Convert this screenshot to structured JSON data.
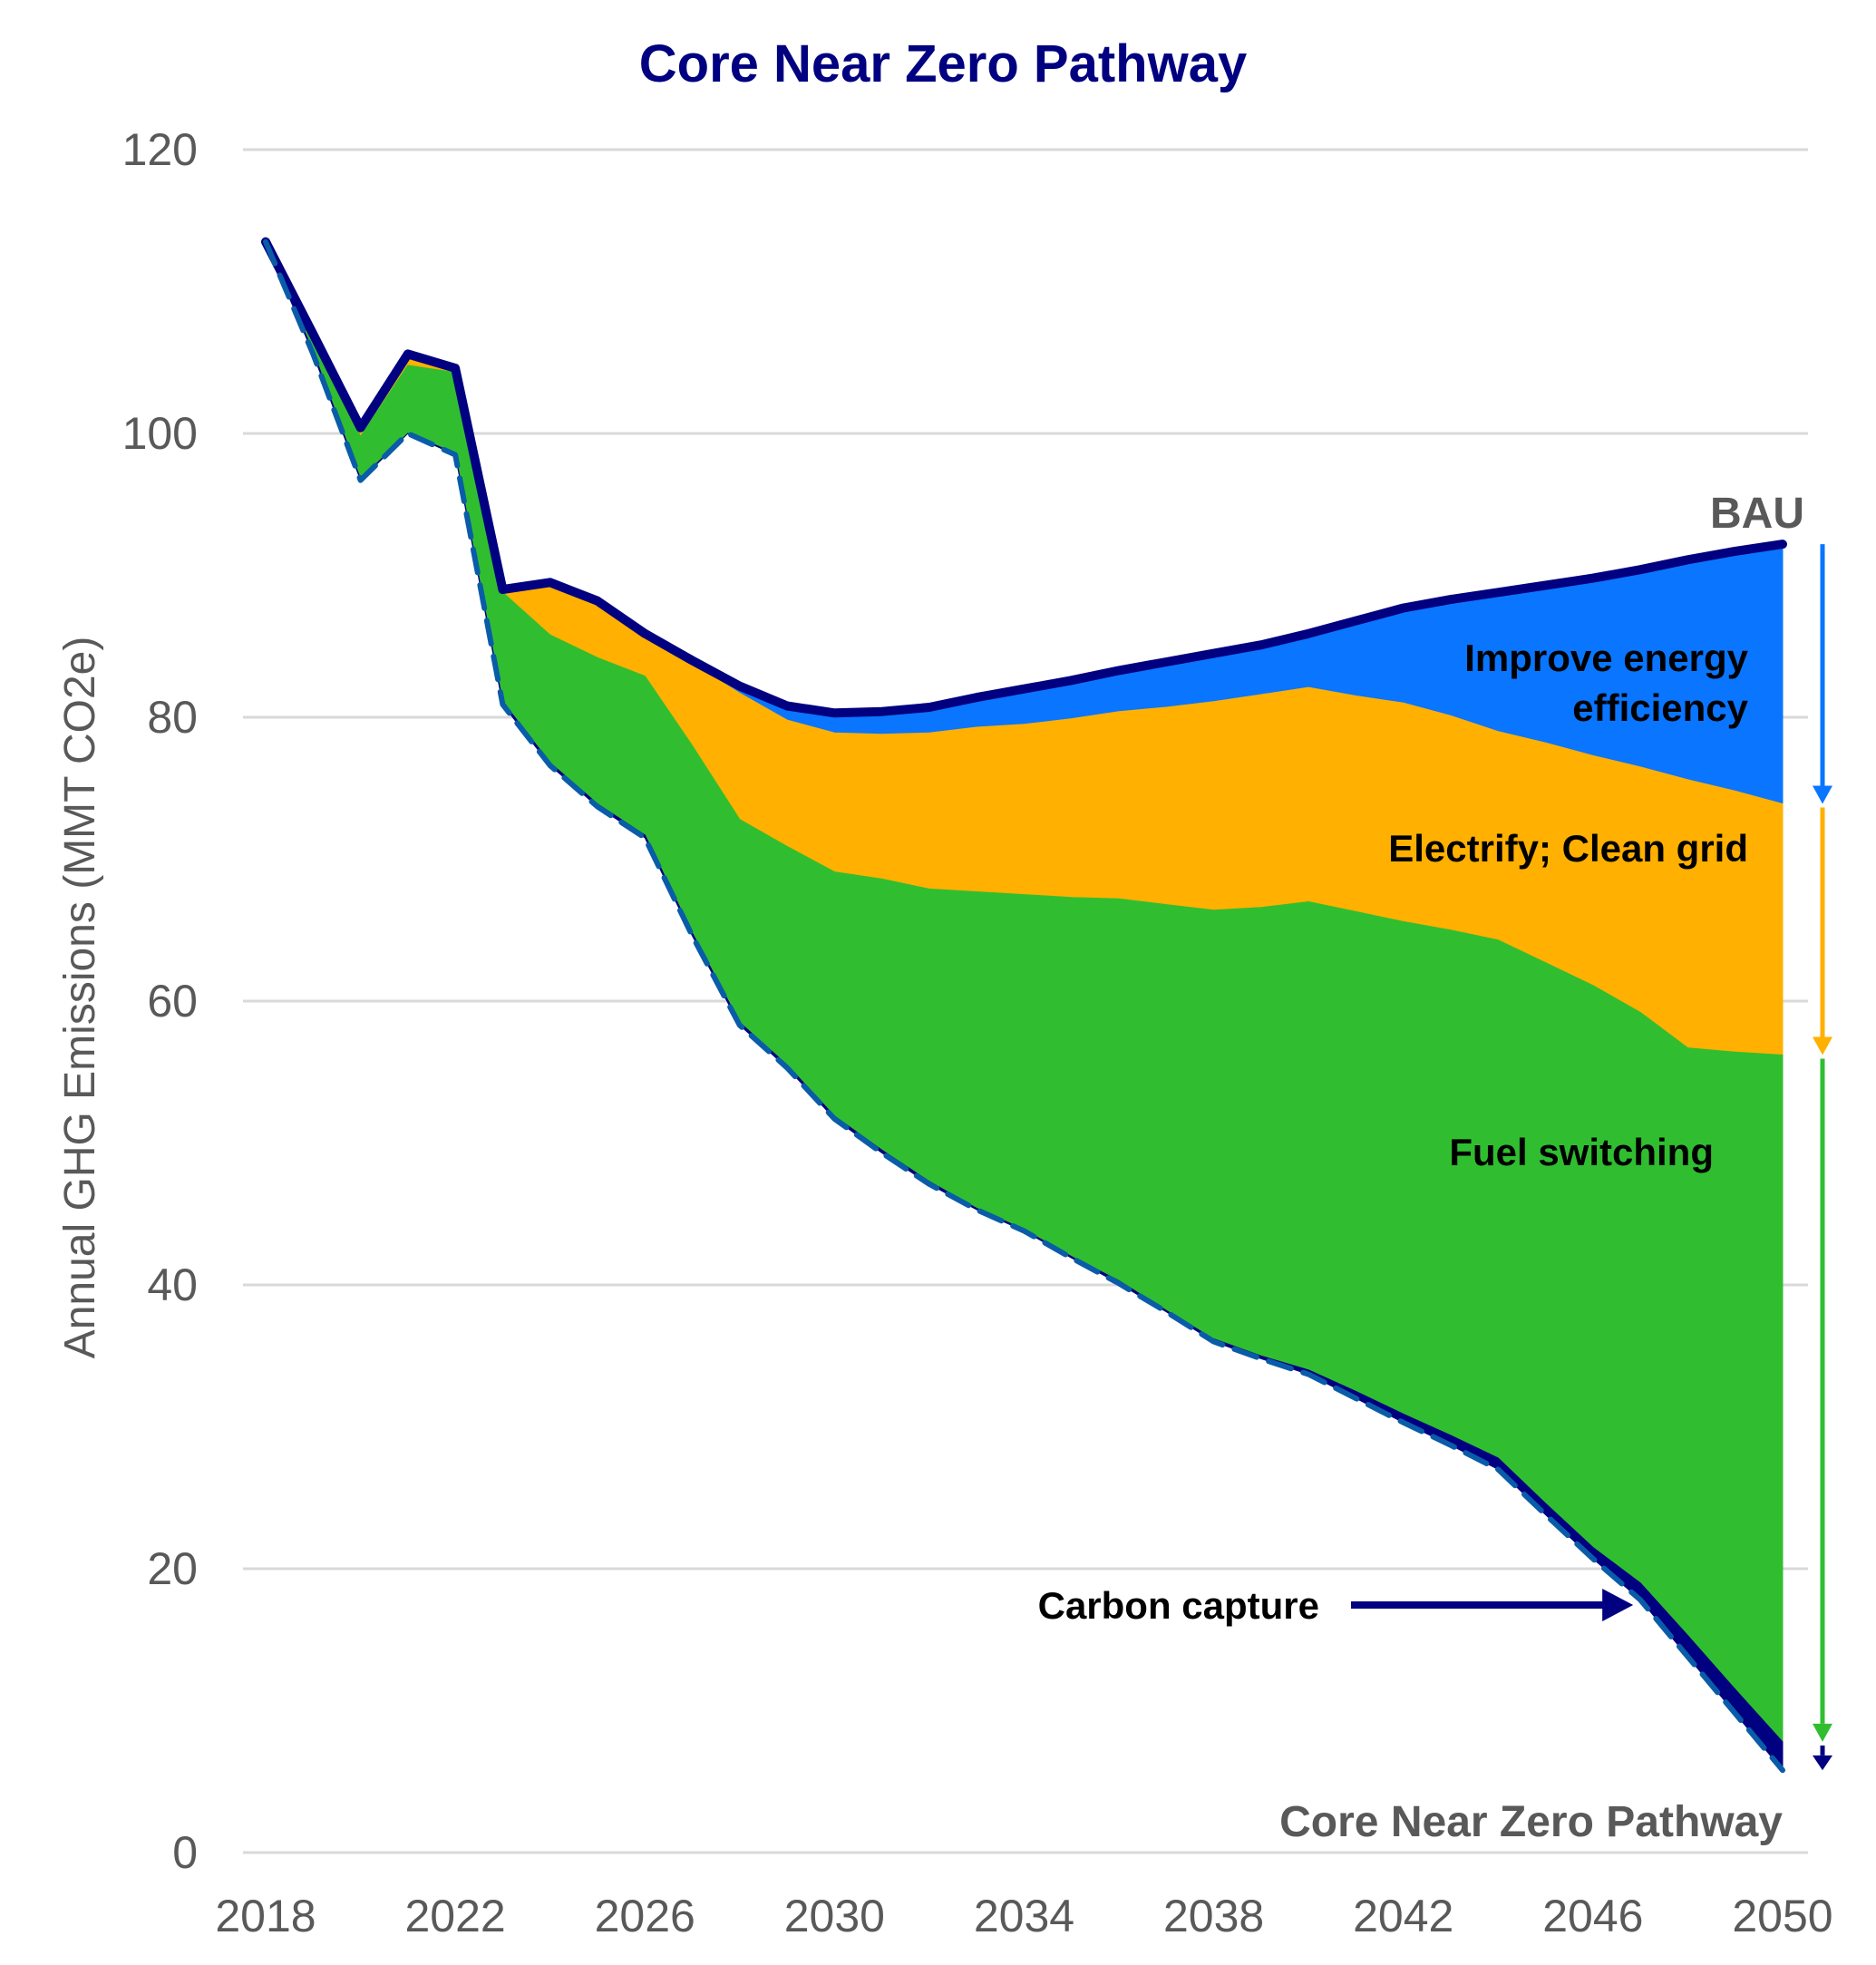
{
  "chart_data": {
    "type": "area",
    "title": "Core Near Zero Pathway",
    "xlabel": "",
    "ylabel": "Annual GHG Emissions (MMT CO2e)",
    "xlim": [
      2018,
      2050
    ],
    "ylim": [
      0,
      120
    ],
    "grid": true,
    "x_ticks": [
      "2018",
      "2022",
      "2026",
      "2030",
      "2034",
      "2038",
      "2042",
      "2046",
      "2050"
    ],
    "y_ticks": [
      "0",
      "20",
      "40",
      "60",
      "80",
      "100",
      "120"
    ],
    "x": [
      2018,
      2019,
      2020,
      2021,
      2022,
      2023,
      2024,
      2025,
      2026,
      2027,
      2028,
      2029,
      2030,
      2031,
      2032,
      2033,
      2034,
      2035,
      2036,
      2037,
      2038,
      2039,
      2040,
      2041,
      2042,
      2043,
      2044,
      2045,
      2046,
      2047,
      2048,
      2049,
      2050
    ],
    "boundaries": {
      "bau": [
        113.5,
        107.0,
        100.4,
        105.6,
        104.6,
        89.0,
        89.5,
        88.2,
        85.9,
        84.0,
        82.2,
        80.8,
        80.3,
        80.4,
        80.7,
        81.4,
        82.0,
        82.6,
        83.3,
        83.9,
        84.5,
        85.1,
        85.9,
        86.8,
        87.7,
        88.3,
        88.8,
        89.3,
        89.8,
        90.4,
        91.1,
        91.7,
        92.2
      ],
      "after_efficiency": [
        113.5,
        107.0,
        100.3,
        105.3,
        104.5,
        88.9,
        89.3,
        88.0,
        85.8,
        83.8,
        81.7,
        79.8,
        78.9,
        78.8,
        78.9,
        79.3,
        79.5,
        79.9,
        80.4,
        80.7,
        81.1,
        81.6,
        82.1,
        81.5,
        81.0,
        80.1,
        79.0,
        78.2,
        77.3,
        76.5,
        75.6,
        74.8,
        73.9
      ],
      "after_electrification": [
        113.5,
        106.5,
        99.8,
        104.8,
        104.3,
        88.8,
        85.8,
        84.2,
        82.9,
        78.0,
        72.8,
        70.9,
        69.1,
        68.6,
        67.9,
        67.7,
        67.5,
        67.3,
        67.2,
        66.8,
        66.4,
        66.6,
        67.0,
        66.3,
        65.6,
        65.0,
        64.3,
        62.7,
        61.1,
        59.2,
        56.7,
        56.4,
        56.2
      ],
      "after_fuel_switching": [
        113.5,
        105.8,
        96.8,
        100.0,
        98.6,
        81.1,
        76.8,
        73.9,
        71.7,
        64.8,
        58.5,
        55.5,
        51.9,
        49.5,
        47.3,
        45.4,
        43.9,
        42.0,
        40.3,
        38.2,
        36.2,
        35.0,
        34.0,
        32.5,
        30.9,
        29.4,
        27.8,
        24.6,
        21.5,
        19.0,
        15.3,
        11.5,
        7.8
      ],
      "core_near_zero": [
        113.5,
        105.6,
        96.7,
        100.0,
        98.5,
        80.9,
        76.6,
        73.7,
        71.5,
        64.6,
        58.3,
        55.3,
        51.7,
        49.3,
        47.1,
        45.3,
        43.8,
        41.9,
        40.1,
        38.1,
        36.0,
        34.8,
        33.7,
        32.0,
        30.3,
        28.7,
        27.0,
        23.8,
        20.7,
        17.8,
        13.8,
        9.8,
        5.8
      ]
    },
    "series": [
      {
        "name": "Improve energy efficiency",
        "color": "#0A75FF",
        "from": "after_efficiency",
        "to": "bau"
      },
      {
        "name": "Electrify; Clean grid",
        "color": "#FFB000",
        "from": "after_electrification",
        "to": "after_efficiency"
      },
      {
        "name": "Fuel switching",
        "color": "#30BE30",
        "from": "after_fuel_switching",
        "to": "after_electrification"
      },
      {
        "name": "Carbon capture",
        "color": "#000080",
        "from": "core_near_zero",
        "to": "after_fuel_switching"
      }
    ],
    "lines": [
      {
        "name": "BAU",
        "color": "#000080",
        "style": "solid",
        "values_ref": "bau"
      },
      {
        "name": "Core Near Zero Pathway",
        "color": "#0A5CA8",
        "style": "dashed",
        "values_ref": "core_near_zero"
      }
    ],
    "annotations": {
      "bau_label": "BAU",
      "efficiency_label_line1": "Improve energy",
      "efficiency_label_line2": "efficiency",
      "electrify_label": "Electrify; Clean grid",
      "fuel_label": "Fuel switching",
      "capture_label": "Carbon capture",
      "pathway_label": "Core Near Zero Pathway"
    },
    "right_arrows": [
      {
        "name": "efficiency-arrow",
        "color": "#0A75FF",
        "from": 92.2,
        "to": 73.9
      },
      {
        "name": "electrify-arrow",
        "color": "#FFB000",
        "from": 73.9,
        "to": 56.2
      },
      {
        "name": "fuel-switching-arrow",
        "color": "#30BE30",
        "from": 56.2,
        "to": 7.8
      },
      {
        "name": "carbon-capture-arrow",
        "color": "#000080",
        "from": 7.8,
        "to": 5.8
      }
    ],
    "capture_pointer": {
      "color": "#000080",
      "target_year": 2047
    }
  },
  "colors": {
    "title": "#000080",
    "axis_text": "#595959",
    "grid": "#d9d9d9"
  }
}
